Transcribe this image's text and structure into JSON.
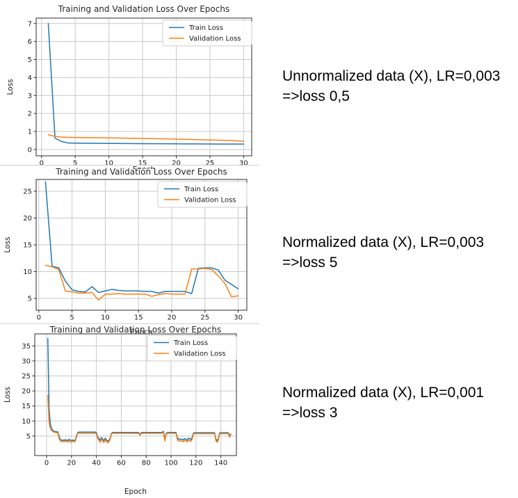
{
  "page": {
    "background": "#ffffff"
  },
  "palette": {
    "train": "#1f77b4",
    "validation": "#ff7f0e",
    "grid": "#c9c9c9",
    "spine": "#2b2b2b",
    "text": "#1a1a1a",
    "divider": "#cfcfcf"
  },
  "annotations": [
    {
      "line1": "Unnormalized data (X), LR=0,003",
      "line2": "=>loss 0,5"
    },
    {
      "line1": "Normalized data (X), LR=0,003",
      "line2": "=>loss 5"
    },
    {
      "line1": "Normalized data (X), LR=0,001",
      "line2": "=>loss 3"
    }
  ],
  "chart_data": [
    {
      "type": "line",
      "title": "Training and Validation Loss Over Epochs",
      "xlabel": "Epoch",
      "ylabel": "Loss",
      "grid": true,
      "legend": [
        "Train Loss",
        "Validation Loss"
      ],
      "legend_position": "upper right",
      "xlim": [
        -0.8,
        31.2
      ],
      "ylim": [
        -0.35,
        7.3
      ],
      "xticks": [
        0,
        5,
        10,
        15,
        20,
        25,
        30
      ],
      "yticks": [
        0,
        1,
        2,
        3,
        4,
        5,
        6,
        7
      ],
      "x_start": 1,
      "x_step": 1,
      "series": [
        {
          "name": "Train Loss",
          "color": "#1f77b4",
          "values": [
            7.0,
            0.63,
            0.44,
            0.36,
            0.355,
            0.35,
            0.345,
            0.34,
            0.34,
            0.335,
            0.335,
            0.33,
            0.33,
            0.325,
            0.325,
            0.32,
            0.32,
            0.32,
            0.315,
            0.315,
            0.31,
            0.31,
            0.31,
            0.305,
            0.305,
            0.3,
            0.3,
            0.3,
            0.3,
            0.3
          ]
        },
        {
          "name": "Validation Loss",
          "color": "#ff7f0e",
          "values": [
            0.82,
            0.73,
            0.69,
            0.675,
            0.67,
            0.665,
            0.66,
            0.655,
            0.65,
            0.645,
            0.64,
            0.63,
            0.625,
            0.62,
            0.61,
            0.605,
            0.6,
            0.59,
            0.585,
            0.575,
            0.57,
            0.56,
            0.55,
            0.54,
            0.53,
            0.52,
            0.51,
            0.5,
            0.48,
            0.46
          ]
        }
      ]
    },
    {
      "type": "line",
      "title": "Training and Validation Loss Over Epochs",
      "xlabel": "Epoch",
      "ylabel": "Loss",
      "grid": true,
      "legend": [
        "Train Loss",
        "Validation Loss"
      ],
      "legend_position": "upper right",
      "xlim": [
        -0.4,
        31.3
      ],
      "ylim": [
        2.8,
        27.2
      ],
      "xticks": [
        0,
        5,
        10,
        15,
        20,
        25,
        30
      ],
      "yticks": [
        5,
        10,
        15,
        20,
        25
      ],
      "x_start": 1,
      "x_step": 1,
      "series": [
        {
          "name": "Train Loss",
          "color": "#1f77b4",
          "values": [
            26.8,
            11.0,
            10.7,
            8.2,
            6.6,
            6.3,
            6.2,
            7.2,
            6.1,
            6.4,
            6.7,
            6.5,
            6.4,
            6.4,
            6.4,
            6.3,
            6.3,
            6.0,
            6.3,
            6.3,
            6.3,
            6.3,
            5.9,
            10.6,
            10.7,
            10.7,
            10.3,
            8.4,
            7.6,
            6.8
          ]
        },
        {
          "name": "Validation Loss",
          "color": "#ff7f0e",
          "values": [
            11.2,
            10.9,
            10.4,
            6.4,
            6.2,
            6.0,
            6.0,
            6.1,
            4.7,
            5.8,
            5.8,
            5.9,
            5.8,
            5.8,
            5.8,
            5.8,
            5.4,
            5.7,
            5.9,
            5.8,
            5.8,
            5.8,
            10.5,
            10.5,
            10.6,
            10.4,
            9.2,
            7.8,
            5.3,
            5.5
          ]
        }
      ]
    },
    {
      "type": "line",
      "title": "Training and Validation Loss Over Epochs",
      "xlabel": "Epoch",
      "ylabel": "Loss",
      "grid": true,
      "legend": [
        "Train Loss",
        "Validation Loss"
      ],
      "legend_position": "upper right",
      "xlim": [
        -9.5,
        152.5
      ],
      "ylim": [
        -1.5,
        39
      ],
      "xticks": [
        0,
        20,
        40,
        60,
        80,
        100,
        120,
        140
      ],
      "yticks": [
        5,
        10,
        15,
        20,
        25,
        30,
        35
      ],
      "x_start": 1,
      "x_step": 1,
      "series": [
        {
          "name": "Train Loss",
          "color": "#1f77b4",
          "values": [
            37.5,
            14.0,
            9.0,
            7.5,
            6.9,
            6.6,
            6.5,
            6.4,
            6.4,
            5.0,
            3.8,
            3.6,
            3.7,
            3.5,
            3.8,
            3.6,
            3.5,
            3.9,
            3.6,
            3.5,
            3.7,
            3.5,
            3.6,
            5.0,
            6.2,
            6.3,
            6.3,
            6.3,
            6.3,
            6.3,
            6.3,
            6.3,
            6.3,
            6.3,
            6.3,
            6.3,
            6.3,
            6.3,
            6.3,
            6.2,
            4.8,
            4.2,
            3.6,
            4.5,
            4.0,
            3.4,
            4.3,
            3.8,
            3.3,
            3.5,
            4.2,
            5.8,
            6.2,
            6.2,
            6.2,
            6.2,
            6.2,
            6.2,
            6.2,
            6.2,
            6.2,
            6.2,
            6.2,
            6.2,
            6.2,
            6.2,
            6.2,
            6.2,
            6.2,
            6.2,
            6.2,
            6.2,
            6.2,
            6.2,
            5.4,
            6.1,
            6.2,
            6.2,
            6.2,
            6.2,
            6.2,
            6.2,
            6.2,
            6.2,
            6.2,
            6.2,
            6.2,
            6.2,
            6.2,
            6.2,
            6.2,
            6.2,
            6.3,
            6.5,
            3.9,
            5.8,
            6.2,
            6.2,
            6.2,
            6.2,
            6.2,
            6.2,
            6.2,
            6.2,
            4.5,
            3.9,
            4.1,
            3.8,
            4.0,
            3.7,
            4.2,
            3.9,
            3.6,
            4.3,
            4.1,
            3.8,
            4.6,
            6.0,
            6.1,
            6.1,
            6.1,
            6.1,
            6.1,
            6.1,
            6.1,
            6.1,
            6.1,
            6.1,
            6.1,
            6.1,
            6.1,
            6.1,
            6.1,
            6.1,
            6.1,
            4.0,
            3.4,
            4.2,
            6.0,
            6.1,
            6.1,
            6.1,
            6.1,
            6.1,
            6.1,
            6.1,
            5.2,
            5.7
          ]
        },
        {
          "name": "Validation Loss",
          "color": "#ff7f0e",
          "values": [
            18.5,
            9.5,
            7.6,
            6.9,
            6.5,
            6.3,
            6.2,
            6.1,
            6.0,
            4.2,
            3.3,
            3.1,
            3.3,
            3.0,
            3.4,
            3.2,
            3.0,
            3.4,
            3.1,
            2.9,
            3.3,
            3.0,
            3.2,
            4.6,
            5.9,
            5.9,
            5.9,
            5.9,
            5.9,
            5.9,
            5.9,
            5.9,
            5.9,
            5.9,
            5.9,
            5.9,
            5.9,
            5.9,
            5.9,
            5.8,
            4.2,
            3.6,
            2.9,
            4.0,
            3.4,
            2.8,
            3.8,
            3.2,
            2.7,
            3.0,
            3.8,
            5.5,
            5.9,
            5.9,
            5.9,
            5.9,
            5.9,
            5.9,
            5.9,
            5.9,
            5.9,
            5.9,
            5.9,
            5.9,
            5.9,
            5.9,
            5.9,
            5.9,
            5.9,
            5.9,
            5.9,
            5.9,
            5.9,
            5.9,
            5.2,
            5.8,
            5.9,
            5.9,
            5.9,
            5.9,
            5.9,
            5.9,
            5.9,
            5.9,
            5.9,
            5.9,
            5.9,
            5.9,
            5.9,
            5.9,
            5.9,
            5.9,
            6.0,
            6.1,
            3.3,
            5.5,
            5.9,
            5.9,
            5.9,
            5.9,
            5.9,
            5.9,
            5.9,
            5.9,
            3.9,
            3.3,
            3.5,
            3.2,
            3.4,
            3.1,
            3.6,
            3.3,
            3.0,
            3.7,
            3.5,
            3.2,
            4.0,
            5.7,
            5.8,
            5.8,
            5.8,
            5.8,
            5.8,
            5.8,
            5.8,
            5.8,
            5.8,
            5.8,
            5.8,
            5.8,
            5.8,
            5.8,
            5.8,
            5.8,
            5.8,
            3.5,
            2.9,
            3.7,
            5.7,
            5.8,
            5.8,
            5.8,
            5.8,
            5.8,
            5.8,
            5.8,
            4.6,
            5.5
          ]
        }
      ]
    }
  ]
}
